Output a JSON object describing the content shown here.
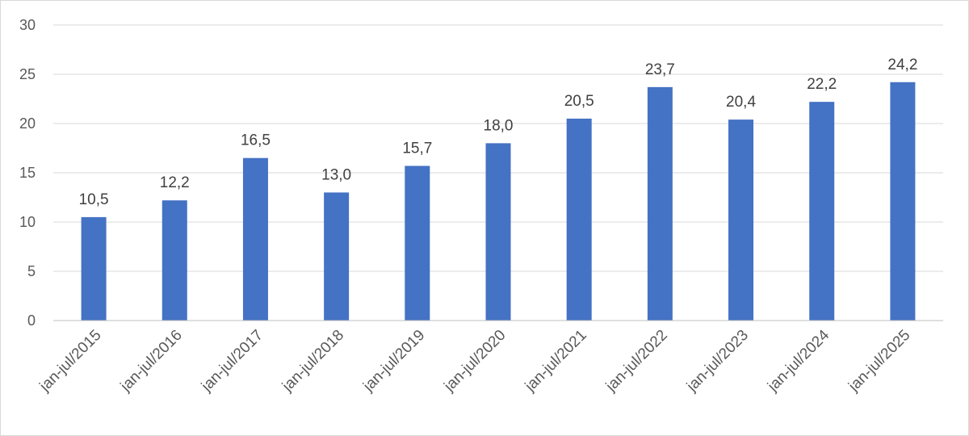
{
  "chart_data": {
    "type": "bar",
    "categories": [
      "jan-jul/2015",
      "jan-jul/2016",
      "jan-jul/2017",
      "jan-jul/2018",
      "jan-jul/2019",
      "jan-jul/2020",
      "jan-jul/2021",
      "jan-jul/2022",
      "jan-jul/2023",
      "jan-jul/2024",
      "jan-jul/2025"
    ],
    "values": [
      10.5,
      12.2,
      16.5,
      13.0,
      15.7,
      18.0,
      20.5,
      23.7,
      20.4,
      22.2,
      24.2
    ],
    "data_labels": [
      "10,5",
      "12,2",
      "16,5",
      "13,0",
      "15,7",
      "18,0",
      "20,5",
      "23,7",
      "20,4",
      "22,2",
      "24,2"
    ],
    "yticks": [
      0,
      5,
      10,
      15,
      20,
      25,
      30
    ],
    "ylim": [
      0,
      30
    ],
    "grid": true,
    "bar_color": "#4472c4",
    "title": "",
    "xlabel": "",
    "ylabel": ""
  }
}
